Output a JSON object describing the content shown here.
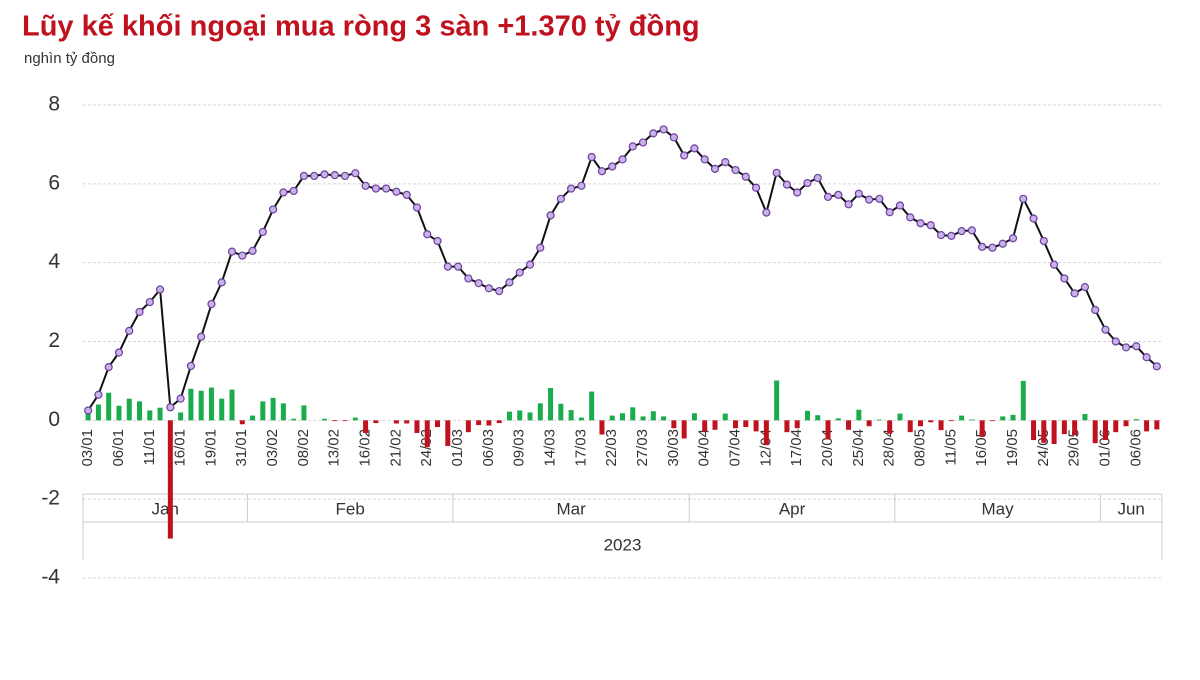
{
  "chart_data": {
    "type": "combo",
    "title": "Lũy kế khối ngoại mua ròng 3 sàn +1.370 tỷ đồng",
    "subtitle": "nghìn tỷ đồng",
    "categories": [
      "03/01",
      null,
      null,
      "06/01",
      null,
      null,
      "11/01",
      null,
      null,
      "16/01",
      null,
      null,
      "19/01",
      null,
      null,
      "31/01",
      null,
      null,
      "03/02",
      null,
      null,
      "08/02",
      null,
      null,
      "13/02",
      null,
      null,
      "16/02",
      null,
      null,
      "21/02",
      null,
      null,
      "24/02",
      null,
      null,
      "01/03",
      null,
      null,
      "06/03",
      null,
      null,
      "09/03",
      null,
      null,
      "14/03",
      null,
      null,
      "17/03",
      null,
      null,
      "22/03",
      null,
      null,
      "27/03",
      null,
      null,
      "30/03",
      null,
      null,
      "04/04",
      null,
      null,
      "07/04",
      null,
      null,
      "12/04",
      null,
      null,
      "17/04",
      null,
      null,
      "20/04",
      null,
      null,
      "25/04",
      null,
      null,
      "28/04",
      null,
      null,
      "08/05",
      null,
      null,
      "11/05",
      null,
      null,
      "16/05",
      null,
      null,
      "19/05",
      null,
      null,
      "24/05",
      null,
      null,
      "29/05",
      null,
      null,
      "01/06",
      null,
      null,
      "06/06",
      null,
      null
    ],
    "groups": [
      {
        "label": "Jan",
        "span": 16
      },
      {
        "label": "Feb",
        "span": 20
      },
      {
        "label": "Mar",
        "span": 23
      },
      {
        "label": "Apr",
        "span": 20
      },
      {
        "label": "May",
        "span": 20
      },
      {
        "label": "Jun",
        "span": 6
      }
    ],
    "year_label": "2023",
    "series": [
      {
        "type": "bar",
        "positive_color": "#1aab4b",
        "negative_color": "#c0111f",
        "values": [
          0.25,
          0.4,
          0.7,
          0.37,
          0.55,
          0.48,
          0.25,
          0.32,
          -3.0,
          0.2,
          0.8,
          0.75,
          0.83,
          0.55,
          0.78,
          -0.1,
          0.12,
          0.48,
          0.57,
          0.43,
          0.04,
          0.38,
          0,
          0.04,
          -0.02,
          -0.02,
          0.07,
          -0.32,
          -0.07,
          0,
          -0.08,
          -0.08,
          -0.32,
          -0.68,
          -0.17,
          -0.65,
          0,
          -0.3,
          -0.12,
          -0.13,
          -0.07,
          0.22,
          0.25,
          0.2,
          0.43,
          0.82,
          0.42,
          0.26,
          0.07,
          0.73,
          -0.36,
          0.12,
          0.18,
          0.33,
          0.1,
          0.23,
          0.1,
          -0.2,
          -0.46,
          0.18,
          -0.28,
          -0.24,
          0.17,
          -0.2,
          -0.17,
          -0.28,
          -0.63,
          1.01,
          -0.3,
          -0.2,
          0.24,
          0.13,
          -0.48,
          0.05,
          -0.24,
          0.27,
          -0.15,
          0.02,
          -0.34,
          0.17,
          -0.3,
          -0.15,
          -0.05,
          -0.25,
          -0.02,
          0.12,
          0.02,
          -0.42,
          -0.02,
          0.1,
          0.14,
          1.0,
          -0.5,
          -0.57,
          -0.6,
          -0.35,
          -0.38,
          0.16,
          -0.58,
          -0.5,
          -0.3,
          -0.15,
          0.03,
          -0.28,
          -0.23
        ]
      },
      {
        "type": "line",
        "color": "#111111",
        "marker_fill": "#c9b3e6",
        "marker_stroke": "#6b3fa0",
        "values": [
          0.25,
          0.65,
          1.35,
          1.72,
          2.27,
          2.75,
          3.0,
          3.32,
          0.33,
          0.55,
          1.38,
          2.12,
          2.95,
          3.5,
          4.28,
          4.18,
          4.3,
          4.78,
          5.35,
          5.78,
          5.82,
          6.2,
          6.2,
          6.24,
          6.22,
          6.2,
          6.27,
          5.95,
          5.88,
          5.88,
          5.8,
          5.72,
          5.4,
          4.72,
          4.55,
          3.9,
          3.9,
          3.6,
          3.48,
          3.35,
          3.28,
          3.5,
          3.75,
          3.95,
          4.38,
          5.2,
          5.62,
          5.88,
          5.95,
          6.68,
          6.32,
          6.44,
          6.62,
          6.95,
          7.05,
          7.28,
          7.38,
          7.18,
          6.72,
          6.9,
          6.62,
          6.38,
          6.55,
          6.35,
          6.18,
          5.9,
          5.27,
          6.28,
          5.98,
          5.78,
          6.02,
          6.15,
          5.67,
          5.72,
          5.48,
          5.75,
          5.6,
          5.62,
          5.28,
          5.45,
          5.15,
          5.0,
          4.95,
          4.7,
          4.68,
          4.8,
          4.82,
          4.4,
          4.38,
          4.48,
          4.62,
          5.62,
          5.12,
          4.55,
          3.95,
          3.6,
          3.22,
          3.38,
          2.8,
          2.3,
          2.0,
          1.85,
          1.88,
          1.6,
          1.37
        ]
      }
    ],
    "ylim": [
      -4,
      8
    ],
    "yticks": [
      -4,
      -2,
      0,
      2,
      4,
      6,
      8
    ],
    "grid": true,
    "title_color": "#c0111f"
  }
}
